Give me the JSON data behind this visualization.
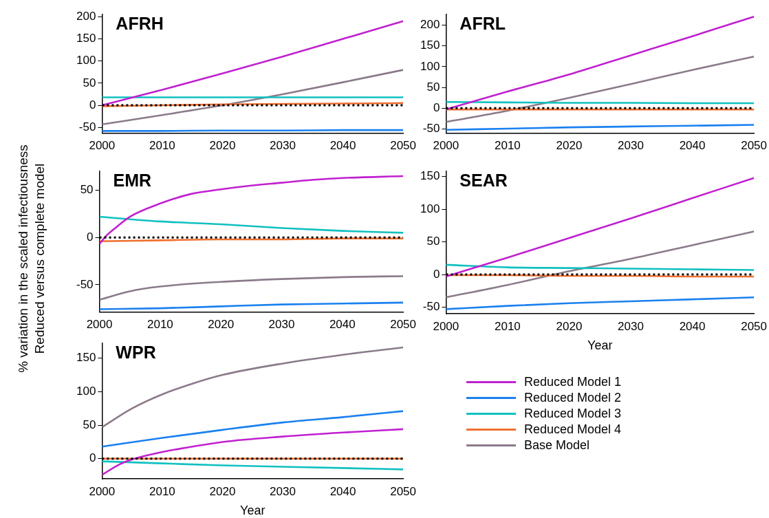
{
  "chart_data": [
    {
      "type": "line",
      "title": "AFRH",
      "xlim": [
        2000,
        2050
      ],
      "xticks": [
        2000,
        2010,
        2020,
        2030,
        2040,
        2050
      ],
      "ylim": [
        -63,
        205
      ],
      "yticks": [
        -50,
        0,
        50,
        100,
        150,
        200
      ],
      "ref_lines": [
        {
          "axis": "y",
          "value": 0,
          "color": "#000000",
          "line_style": "dotted"
        }
      ],
      "series": [
        {
          "color": "#c020d0",
          "x": [
            2000,
            2010,
            2020,
            2030,
            2040,
            2050
          ],
          "values": [
            0,
            35,
            72,
            110,
            150,
            190
          ]
        },
        {
          "color": "#1a80f0",
          "x": [
            2000,
            2010,
            2020,
            2030,
            2040,
            2050
          ],
          "values": [
            -58,
            -58,
            -57,
            -57,
            -56,
            -56
          ]
        },
        {
          "color": "#10c0c0",
          "x": [
            2000,
            2010,
            2020,
            2030,
            2040,
            2050
          ],
          "values": [
            18,
            18,
            18,
            18,
            18,
            18
          ]
        },
        {
          "color": "#f07030",
          "x": [
            2000,
            2010,
            2020,
            2030,
            2040,
            2050
          ],
          "values": [
            -2,
            0,
            2,
            3,
            4,
            5
          ]
        },
        {
          "color": "#8a7a8a",
          "x": [
            2000,
            2010,
            2020,
            2030,
            2040,
            2050
          ],
          "values": [
            -43,
            -22,
            0,
            25,
            52,
            80
          ]
        }
      ]
    },
    {
      "type": "line",
      "title": "AFRL",
      "xlim": [
        2000,
        2050
      ],
      "xticks": [
        2000,
        2010,
        2020,
        2030,
        2040,
        2050
      ],
      "ylim": [
        -60,
        225
      ],
      "yticks": [
        -50,
        0,
        50,
        100,
        150,
        200
      ],
      "ref_lines": [
        {
          "axis": "y",
          "value": 0,
          "color": "#000000",
          "line_style": "dotted"
        }
      ],
      "series": [
        {
          "color": "#c020d0",
          "x": [
            2000,
            2010,
            2020,
            2030,
            2040,
            2050
          ],
          "values": [
            -3,
            40,
            81,
            127,
            173,
            220
          ]
        },
        {
          "color": "#1a80f0",
          "x": [
            2000,
            2010,
            2020,
            2030,
            2040,
            2050
          ],
          "values": [
            -52,
            -49,
            -46,
            -44,
            -42,
            -40
          ]
        },
        {
          "color": "#10c0c0",
          "x": [
            2000,
            2010,
            2020,
            2030,
            2040,
            2050
          ],
          "values": [
            15,
            14,
            13,
            13,
            12,
            12
          ]
        },
        {
          "color": "#f07030",
          "x": [
            2000,
            2010,
            2020,
            2030,
            2040,
            2050
          ],
          "values": [
            -3,
            -3,
            -3,
            -3,
            -3,
            -3
          ]
        },
        {
          "color": "#8a7a8a",
          "x": [
            2000,
            2010,
            2020,
            2030,
            2040,
            2050
          ],
          "values": [
            -33,
            -6,
            25,
            58,
            92,
            124
          ]
        }
      ]
    },
    {
      "type": "line",
      "title": "EMR",
      "ylabel": "% variation in the scaled infectiousness\nReduced versus complete model",
      "xlim": [
        2000,
        2050
      ],
      "xticks": [
        2000,
        2010,
        2020,
        2030,
        2040,
        2050
      ],
      "ylim": [
        -79,
        70
      ],
      "yticks": [
        -50,
        0,
        50
      ],
      "ref_lines": [
        {
          "axis": "y",
          "value": 0,
          "color": "#000000",
          "line_style": "dotted"
        }
      ],
      "series": [
        {
          "color": "#c020d0",
          "x": [
            2000,
            2001,
            2003,
            2005,
            2010,
            2015,
            2020,
            2025,
            2030,
            2035,
            2040,
            2050
          ],
          "values": [
            -7,
            1,
            12,
            22,
            36,
            46,
            51,
            55,
            58,
            61,
            63,
            65
          ]
        },
        {
          "color": "#1a80f0",
          "x": [
            2000,
            2010,
            2020,
            2030,
            2040,
            2050
          ],
          "values": [
            -76,
            -75,
            -73,
            -71,
            -70,
            -69
          ]
        },
        {
          "color": "#10c0c0",
          "x": [
            2000,
            2010,
            2020,
            2030,
            2040,
            2050
          ],
          "values": [
            22,
            17,
            14,
            10,
            7,
            5
          ]
        },
        {
          "color": "#f07030",
          "x": [
            2000,
            2010,
            2020,
            2030,
            2040,
            2050
          ],
          "values": [
            -4,
            -3,
            -2,
            -2,
            -1,
            -1
          ]
        },
        {
          "color": "#8a7a8a",
          "x": [
            2000,
            2005,
            2010,
            2020,
            2030,
            2040,
            2050
          ],
          "values": [
            -66,
            -57,
            -52,
            -47,
            -44,
            -42,
            -41
          ]
        }
      ]
    },
    {
      "type": "line",
      "title": "SEAR",
      "xlabel": "Year",
      "xlim": [
        2000,
        2050
      ],
      "xticks": [
        2000,
        2010,
        2020,
        2030,
        2040,
        2050
      ],
      "ylim": [
        -60,
        158
      ],
      "yticks": [
        -50,
        0,
        50,
        100,
        150
      ],
      "ref_lines": [
        {
          "axis": "y",
          "value": 0,
          "color": "#000000",
          "line_style": "dotted"
        }
      ],
      "series": [
        {
          "color": "#c020d0",
          "x": [
            2000,
            2010,
            2020,
            2030,
            2040,
            2050
          ],
          "values": [
            -3,
            26,
            56,
            86,
            117,
            148
          ]
        },
        {
          "color": "#1a80f0",
          "x": [
            2000,
            2010,
            2020,
            2030,
            2040,
            2050
          ],
          "values": [
            -53,
            -48,
            -44,
            -41,
            -38,
            -35
          ]
        },
        {
          "color": "#10c0c0",
          "x": [
            2000,
            2010,
            2020,
            2030,
            2040,
            2050
          ],
          "values": [
            15,
            11,
            10,
            9,
            8,
            7
          ]
        },
        {
          "color": "#f07030",
          "x": [
            2000,
            2010,
            2020,
            2030,
            2040,
            2050
          ],
          "values": [
            -1,
            -1,
            -2,
            -2,
            -3,
            -3
          ]
        },
        {
          "color": "#8a7a8a",
          "x": [
            2000,
            2010,
            2020,
            2030,
            2040,
            2050
          ],
          "values": [
            -35,
            -16,
            5,
            24,
            45,
            66
          ]
        }
      ]
    },
    {
      "type": "line",
      "title": "WPR",
      "xlabel": "Year",
      "legend": "right",
      "xlim": [
        2000,
        2050
      ],
      "xticks": [
        2000,
        2010,
        2020,
        2030,
        2040,
        2050
      ],
      "ylim": [
        -30,
        172
      ],
      "yticks": [
        0,
        50,
        100,
        150
      ],
      "ref_lines": [
        {
          "axis": "y",
          "value": 0,
          "color": "#000000",
          "line_style": "dotted"
        }
      ],
      "series": [
        {
          "name": "Reduced Model 1",
          "color": "#c020d0",
          "x": [
            2000,
            2003,
            2005,
            2010,
            2015,
            2020,
            2030,
            2040,
            2050
          ],
          "values": [
            -24,
            -8,
            -1,
            10,
            18,
            25,
            33,
            39,
            44
          ]
        },
        {
          "name": "Reduced Model 2",
          "color": "#1a80f0",
          "x": [
            2000,
            2010,
            2020,
            2030,
            2040,
            2050
          ],
          "values": [
            18,
            31,
            43,
            54,
            62,
            71
          ]
        },
        {
          "name": "Reduced Model 3",
          "color": "#10c0c0",
          "x": [
            2000,
            2010,
            2020,
            2030,
            2040,
            2050
          ],
          "values": [
            -4,
            -7,
            -10,
            -12,
            -14,
            -16
          ]
        },
        {
          "name": "Reduced Model 4",
          "color": "#f07030",
          "x": [
            2000,
            2010,
            2020,
            2030,
            2040,
            2050
          ],
          "values": [
            0,
            0,
            0,
            0,
            0,
            0
          ]
        },
        {
          "name": "Base Model",
          "color": "#8a7a8a",
          "x": [
            2000,
            2005,
            2010,
            2015,
            2020,
            2030,
            2040,
            2050
          ],
          "values": [
            47,
            75,
            96,
            112,
            125,
            142,
            155,
            166
          ]
        }
      ]
    }
  ]
}
